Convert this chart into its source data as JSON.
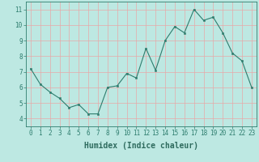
{
  "x": [
    0,
    1,
    2,
    3,
    4,
    5,
    6,
    7,
    8,
    9,
    10,
    11,
    12,
    13,
    14,
    15,
    16,
    17,
    18,
    19,
    20,
    21,
    22,
    23
  ],
  "y": [
    7.2,
    6.2,
    5.7,
    5.3,
    4.7,
    4.9,
    4.3,
    4.3,
    6.0,
    6.1,
    6.9,
    6.6,
    8.5,
    7.1,
    9.0,
    9.9,
    9.5,
    11.0,
    10.3,
    10.5,
    9.5,
    8.2,
    7.7,
    6.0
  ],
  "xlabel": "Humidex (Indice chaleur)",
  "ylim": [
    3.5,
    11.5
  ],
  "xlim": [
    -0.5,
    23.5
  ],
  "yticks": [
    4,
    5,
    6,
    7,
    8,
    9,
    10,
    11
  ],
  "xticks": [
    0,
    1,
    2,
    3,
    4,
    5,
    6,
    7,
    8,
    9,
    10,
    11,
    12,
    13,
    14,
    15,
    16,
    17,
    18,
    19,
    20,
    21,
    22,
    23
  ],
  "line_color": "#2e7d6e",
  "marker_color": "#2e7d6e",
  "bg_color": "#bde8e2",
  "grid_color": "#e8a8a8",
  "axis_color": "#2e7d6e",
  "label_color": "#2e6b5e",
  "tick_label_color": "#2e6b5e",
  "font_size": 5.5,
  "xlabel_fontsize": 7.0
}
